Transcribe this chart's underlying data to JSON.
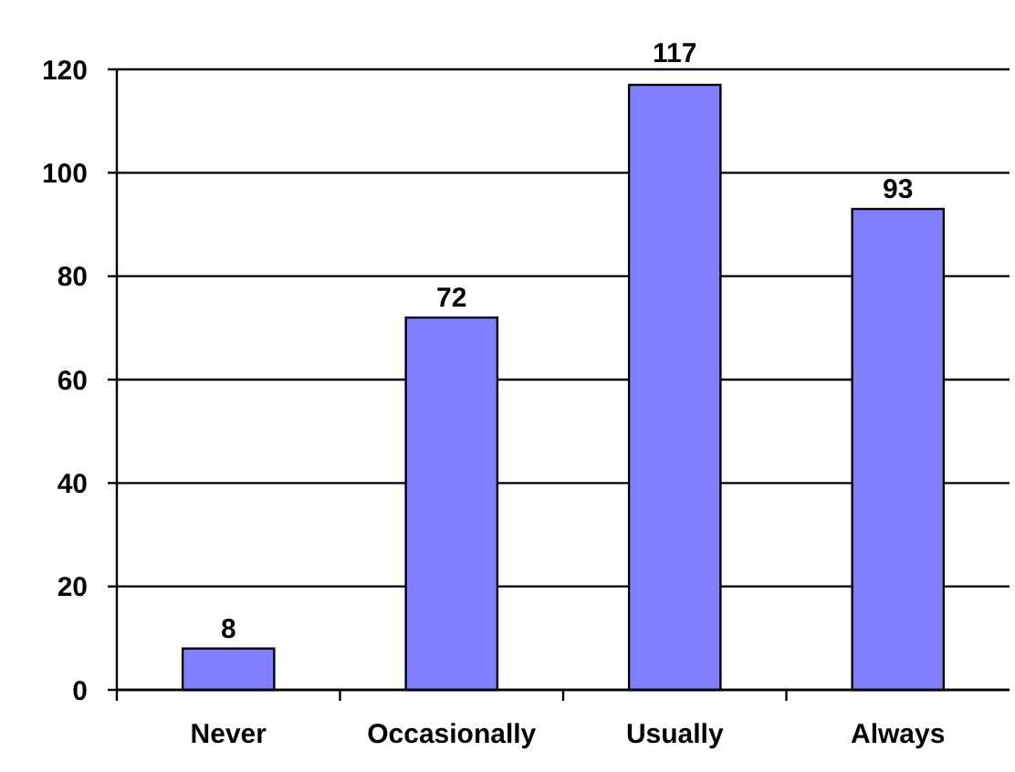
{
  "chart_data": {
    "type": "bar",
    "categories": [
      "Never",
      "Occasionally",
      "Usually",
      "Always"
    ],
    "values": [
      8,
      72,
      117,
      93
    ],
    "color": "#8080ff",
    "ylim": [
      0,
      120
    ],
    "yticks": [
      0,
      20,
      40,
      60,
      80,
      100,
      120
    ],
    "grid": "y",
    "data_labels": true
  }
}
